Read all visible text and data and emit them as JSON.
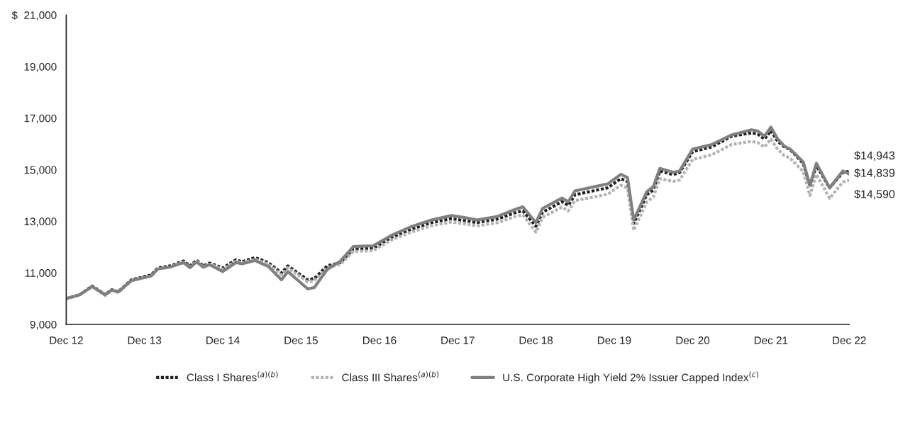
{
  "chart_data": {
    "type": "line",
    "x": [
      "2012-12",
      "2013-02",
      "2013-04",
      "2013-06",
      "2013-07",
      "2013-08",
      "2013-10",
      "2014-01",
      "2014-02",
      "2014-04",
      "2014-06",
      "2014-07",
      "2014-08",
      "2014-09",
      "2014-10",
      "2014-12",
      "2015-02",
      "2015-03",
      "2015-05",
      "2015-07",
      "2015-09",
      "2015-10",
      "2016-01",
      "2016-02",
      "2016-04",
      "2016-06",
      "2016-08",
      "2016-11",
      "2017-02",
      "2017-05",
      "2017-08",
      "2017-11",
      "2018-01",
      "2018-03",
      "2018-06",
      "2018-09",
      "2018-10",
      "2018-12",
      "2019-01",
      "2019-04",
      "2019-05",
      "2019-06",
      "2019-11",
      "2020-01",
      "2020-02",
      "2020-03",
      "2020-05",
      "2020-06",
      "2020-07",
      "2020-09",
      "2020-10",
      "2020-12",
      "2021-03",
      "2021-06",
      "2021-09",
      "2021-10",
      "2021-11",
      "2021-12",
      "2022-01",
      "2022-02",
      "2022-03",
      "2022-05",
      "2022-06",
      "2022-07",
      "2022-09",
      "2022-11",
      "2022-12"
    ],
    "series": [
      {
        "name": "Class I Shares$^{(a)(b)}$",
        "color": "#231f20",
        "line_style": "dotted",
        "values": [
          10000,
          10150,
          10490,
          10160,
          10350,
          10270,
          10730,
          10920,
          11190,
          11270,
          11460,
          11270,
          11490,
          11270,
          11380,
          11190,
          11510,
          11430,
          11590,
          11400,
          11000,
          11270,
          10730,
          10780,
          11270,
          11400,
          11920,
          11950,
          12400,
          12700,
          12950,
          13100,
          13030,
          12950,
          13080,
          13350,
          13400,
          12810,
          13350,
          13760,
          13620,
          14030,
          14300,
          14650,
          14540,
          12920,
          14030,
          14220,
          14950,
          14810,
          14890,
          15700,
          15890,
          16300,
          16430,
          16380,
          16190,
          16510,
          16110,
          15890,
          15780,
          15240,
          14350,
          15160,
          14300,
          14890,
          14943
        ]
      },
      {
        "name": "Class III Shares$^{(a)(b)}$",
        "color": "#b3b3b3",
        "line_style": "dotted",
        "values": [
          10000,
          10130,
          10460,
          10120,
          10320,
          10240,
          10700,
          10880,
          11150,
          11230,
          11420,
          11220,
          11450,
          11230,
          11340,
          11140,
          11460,
          11380,
          11530,
          11340,
          10930,
          11200,
          10650,
          10700,
          11200,
          11330,
          11830,
          11860,
          12300,
          12590,
          12830,
          12970,
          12900,
          12820,
          12940,
          13200,
          13240,
          12580,
          13150,
          13550,
          13400,
          13800,
          14050,
          14400,
          14280,
          12650,
          13750,
          13950,
          14650,
          14550,
          14600,
          15400,
          15580,
          15980,
          16100,
          16050,
          15880,
          16190,
          15800,
          15550,
          15450,
          14920,
          14000,
          14820,
          13890,
          14520,
          14590
        ]
      },
      {
        "name": "U.S. Corporate High Yield 2% Issuer Capped Index$^{(c)}$",
        "color": "#808080",
        "line_style": "solid",
        "values": [
          10000,
          10150,
          10470,
          10150,
          10340,
          10260,
          10700,
          10880,
          11150,
          11230,
          11400,
          11200,
          11420,
          11220,
          11320,
          11050,
          11400,
          11350,
          11480,
          11250,
          10730,
          11050,
          10380,
          10430,
          11130,
          11450,
          12020,
          12050,
          12480,
          12800,
          13050,
          13220,
          13150,
          13050,
          13180,
          13480,
          13560,
          12950,
          13500,
          13900,
          13760,
          14180,
          14450,
          14820,
          14700,
          13050,
          14150,
          14350,
          15050,
          14900,
          14950,
          15800,
          15980,
          16350,
          16550,
          16500,
          16300,
          16650,
          16200,
          15920,
          15800,
          15300,
          14400,
          15250,
          14300,
          14950,
          14839
        ]
      }
    ],
    "annotations": [
      {
        "text": "$14,943",
        "x": "2022-12",
        "y": 14943
      },
      {
        "text": "$14,839",
        "x": "2022-12",
        "y": 14839
      },
      {
        "text": "$14,590",
        "x": "2022-12",
        "y": 14590
      }
    ],
    "xlim": [
      "2012-12",
      "2022-12"
    ],
    "xticks": [
      {
        "value": "2012-12",
        "label": "Dec 12"
      },
      {
        "value": "2013-12",
        "label": "Dec 13"
      },
      {
        "value": "2014-12",
        "label": "Dec 14"
      },
      {
        "value": "2015-12",
        "label": "Dec 15"
      },
      {
        "value": "2016-12",
        "label": "Dec 16"
      },
      {
        "value": "2017-12",
        "label": "Dec 17"
      },
      {
        "value": "2018-12",
        "label": "Dec 18"
      },
      {
        "value": "2019-12",
        "label": "Dec 19"
      },
      {
        "value": "2020-12",
        "label": "Dec 20"
      },
      {
        "value": "2021-12",
        "label": "Dec 21"
      },
      {
        "value": "2022-12",
        "label": "Dec 22"
      }
    ],
    "ylim": [
      9000,
      21000
    ],
    "yticks": [
      {
        "value": 9000,
        "label": "9,000"
      },
      {
        "value": 11000,
        "label": "11,000"
      },
      {
        "value": 13000,
        "label": "13,000"
      },
      {
        "value": 15000,
        "label": "15,000"
      },
      {
        "value": 17000,
        "label": "17,000"
      },
      {
        "value": 19000,
        "label": "19,000"
      },
      {
        "value": 21000,
        "label": "$  21,000"
      }
    ],
    "grid": false,
    "legend": "bottom"
  }
}
